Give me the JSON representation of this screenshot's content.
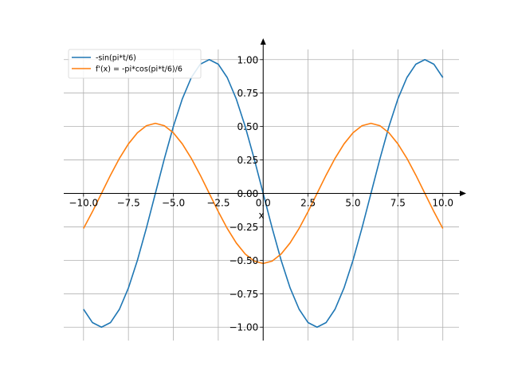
{
  "chart_data": {
    "type": "line",
    "title": "",
    "xlabel": "x",
    "ylabel": "",
    "xlim": [
      -11.1,
      10.9
    ],
    "ylim": [
      -1.1,
      1.1
    ],
    "grid": true,
    "legend_position": "top-left",
    "x_ticks": [
      -10.0,
      -7.5,
      -5.0,
      -2.5,
      0.0,
      2.5,
      5.0,
      7.5,
      10.0
    ],
    "x_tick_labels": [
      "−10.0",
      "−7.5",
      "−5.0",
      "−2.5",
      "0.0",
      "2.5",
      "5.0",
      "7.5",
      "10.0"
    ],
    "y_ticks": [
      -1.0,
      -0.75,
      -0.5,
      -0.25,
      0.0,
      0.25,
      0.5,
      0.75,
      1.0
    ],
    "y_tick_labels": [
      "−1.00",
      "−0.75",
      "−0.50",
      "−0.25",
      "0.00",
      "0.25",
      "0.50",
      "0.75",
      "1.00"
    ],
    "series": [
      {
        "name": "-sin(pi*t/6)",
        "color": "#1f77b4",
        "x": [
          -10,
          -9.5,
          -9,
          -8.5,
          -8,
          -7.5,
          -7,
          -6.5,
          -6,
          -5.5,
          -5,
          -4.5,
          -4,
          -3.5,
          -3,
          -2.5,
          -2,
          -1.5,
          -1,
          -0.5,
          0,
          0.5,
          1,
          1.5,
          2,
          2.5,
          3,
          3.5,
          4,
          4.5,
          5,
          5.5,
          6,
          6.5,
          7,
          7.5,
          8,
          8.5,
          9,
          9.5,
          10
        ],
        "y": [
          -0.866,
          -0.966,
          -1.0,
          -0.966,
          -0.866,
          -0.707,
          -0.5,
          -0.259,
          0.0,
          0.259,
          0.5,
          0.707,
          0.866,
          0.966,
          1.0,
          0.966,
          0.866,
          0.707,
          0.5,
          0.259,
          0.0,
          -0.259,
          -0.5,
          -0.707,
          -0.866,
          -0.966,
          -1.0,
          -0.966,
          -0.866,
          -0.707,
          -0.5,
          -0.259,
          0.0,
          0.259,
          0.5,
          0.707,
          0.866,
          0.966,
          1.0,
          0.966,
          0.866
        ]
      },
      {
        "name": "f'(x) = -pi*cos(pi*t/6)/6",
        "color": "#ff7f0e",
        "x": [
          -10,
          -9.5,
          -9,
          -8.5,
          -8,
          -7.5,
          -7,
          -6.5,
          -6,
          -5.5,
          -5,
          -4.5,
          -4,
          -3.5,
          -3,
          -2.5,
          -2,
          -1.5,
          -1,
          -0.5,
          0,
          0.5,
          1,
          1.5,
          2,
          2.5,
          3,
          3.5,
          4,
          4.5,
          5,
          5.5,
          6,
          6.5,
          7,
          7.5,
          8,
          8.5,
          9,
          9.5,
          10
        ],
        "y": [
          -0.262,
          -0.136,
          0.0,
          0.136,
          0.262,
          0.37,
          0.453,
          0.506,
          0.524,
          0.506,
          0.453,
          0.37,
          0.262,
          0.136,
          0.0,
          -0.136,
          -0.262,
          -0.37,
          -0.453,
          -0.506,
          -0.524,
          -0.506,
          -0.453,
          -0.37,
          -0.262,
          -0.136,
          0.0,
          0.136,
          0.262,
          0.37,
          0.453,
          0.506,
          0.524,
          0.506,
          0.453,
          0.37,
          0.262,
          0.136,
          0.0,
          -0.136,
          -0.262
        ]
      }
    ]
  }
}
